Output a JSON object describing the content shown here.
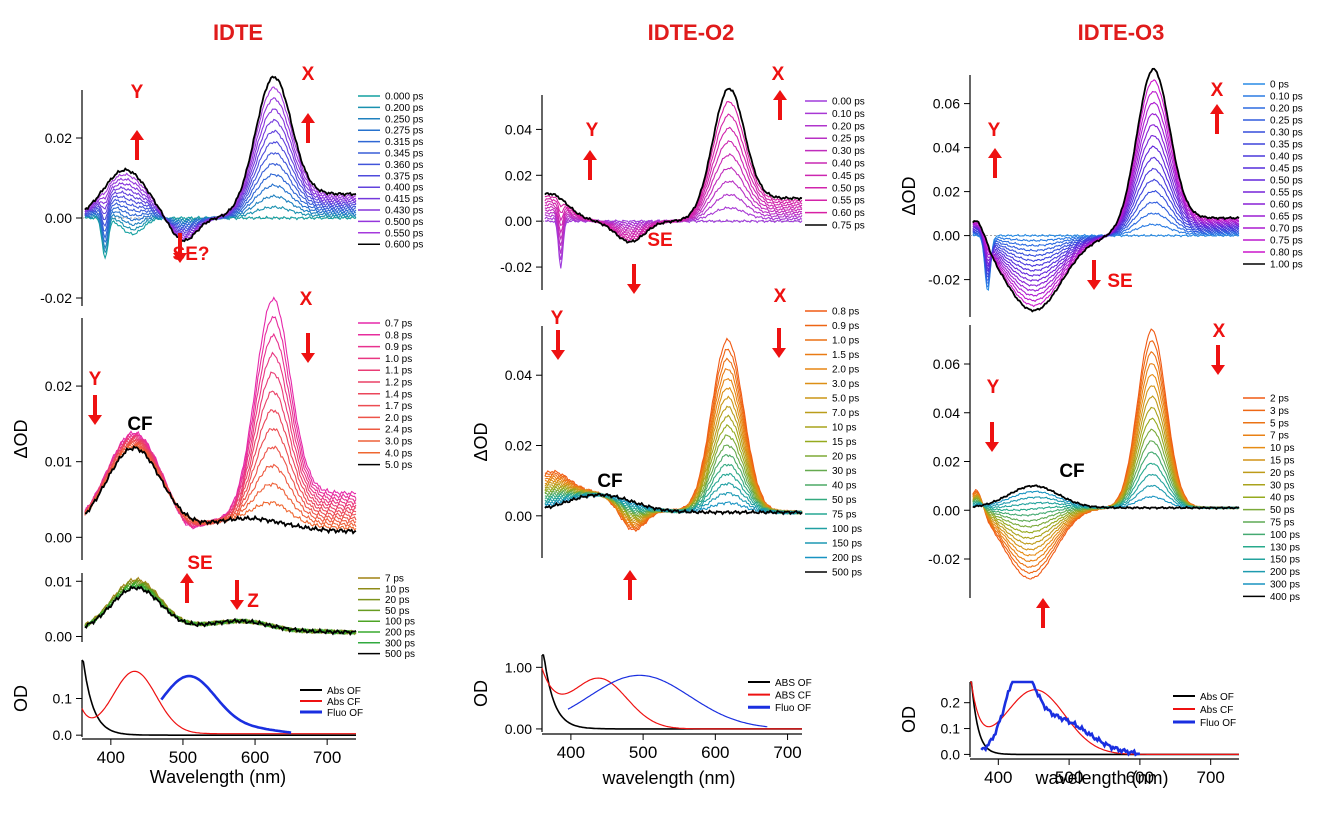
{
  "colors": {
    "title": "#e01b1b",
    "annot": "#ee1111",
    "black": "#000000",
    "red": "#ee1111",
    "blue": "#1a2fe0"
  },
  "columns": [
    {
      "title": "IDTE",
      "xlabel": "Wavelength (nm)",
      "panels": [
        {
          "kind": "evolution",
          "ylabel": "",
          "yticks": [
            "0.02",
            "0.00",
            "-0.02"
          ],
          "ylim": [
            -0.022,
            0.032
          ],
          "legend": [
            "0.000 ps",
            "0.200 ps",
            "0.250 ps",
            "0.275 ps",
            "0.315 ps",
            "0.345 ps",
            "0.360 ps",
            "0.375 ps",
            "0.400 ps",
            "0.415 ps",
            "0.430 ps",
            "0.500 ps",
            "0.550 ps",
            "0.600 ps"
          ],
          "annotations": [
            {
              "text": "Y",
              "dir": "up"
            },
            {
              "text": "X",
              "dir": "up"
            },
            {
              "text": "SE?",
              "dir": "down"
            }
          ]
        },
        {
          "kind": "decay",
          "ylabel": "ΔOD",
          "yticks": [
            "0.02",
            "0.01",
            "0.00"
          ],
          "ylim": [
            -0.003,
            0.029
          ],
          "legend": [
            "0.7 ps",
            "0.8 ps",
            "0.9 ps",
            "1.0 ps",
            "1.1 ps",
            "1.2 ps",
            "1.4 ps",
            "1.7 ps",
            "2.0 ps",
            "2.4 ps",
            "3.0 ps",
            "4.0 ps",
            "5.0 ps"
          ],
          "annotations": [
            {
              "text": "Y",
              "dir": "down"
            },
            {
              "text": "X",
              "dir": "down"
            },
            {
              "text": "CF",
              "dir": "none"
            },
            {
              "text": "SE",
              "dir": "up"
            }
          ]
        },
        {
          "kind": "slow",
          "ylabel": "",
          "yticks": [
            "0.01",
            "0.00"
          ],
          "ylim": [
            -0.001,
            0.0115
          ],
          "legend": [
            "7 ps",
            "10 ps",
            "20 ps",
            "50 ps",
            "100 ps",
            "200 ps",
            "300 ps",
            "500 ps"
          ],
          "annotations": [
            {
              "text": "Z",
              "dir": "down"
            }
          ]
        },
        {
          "kind": "steady",
          "ylabel": "OD",
          "yticks": [
            "0.1",
            "0.0"
          ],
          "ylim": [
            -0.005,
            0.205
          ],
          "legend": [
            "Abs OF",
            "Abs CF",
            "Fluo OF"
          ]
        }
      ],
      "xticks": [
        "400",
        "500",
        "600",
        "700"
      ]
    },
    {
      "title": "IDTE-O2",
      "xlabel": "wavelength (nm)",
      "panels": [
        {
          "kind": "evolution",
          "ylabel": "",
          "yticks": [
            "0.04",
            "0.02",
            "0.00",
            "-0.02"
          ],
          "ylim": [
            -0.03,
            0.055
          ],
          "legend": [
            "0.00 ps",
            "0.10 ps",
            "0.20 ps",
            "0.25 ps",
            "0.30 ps",
            "0.40 ps",
            "0.45 ps",
            "0.50 ps",
            "0.55 ps",
            "0.60 ps",
            "0.75 ps"
          ],
          "annotations": [
            {
              "text": "Y",
              "dir": "up"
            },
            {
              "text": "X",
              "dir": "up"
            },
            {
              "text": "SE",
              "dir": "down"
            }
          ]
        },
        {
          "kind": "decay",
          "ylabel": "ΔOD",
          "yticks": [
            "0.04",
            "0.02",
            "0.00"
          ],
          "ylim": [
            -0.012,
            0.054
          ],
          "legend": [
            "0.8 ps",
            "0.9 ps",
            "1.0 ps",
            "1.5 ps",
            "2.0 ps",
            "3.0 ps",
            "5.0 ps",
            "7.0 ps",
            "10 ps",
            "15 ps",
            "20 ps",
            "30 ps",
            "40 ps",
            "50 ps",
            "75 ps",
            "100 ps",
            "150 ps",
            "200 ps",
            "500 ps"
          ],
          "annotations": [
            {
              "text": "Y",
              "dir": "down"
            },
            {
              "text": "X",
              "dir": "down"
            },
            {
              "text": "CF",
              "dir": "none"
            },
            {
              "text": "",
              "dir": "up"
            }
          ]
        },
        {
          "kind": "steady",
          "ylabel": "OD",
          "yticks": [
            "1.00",
            "0.00"
          ],
          "ylim": [
            -0.05,
            1.2
          ],
          "legend": [
            "ABS OF",
            "ABS CF",
            "Fluo OF"
          ]
        }
      ],
      "xticks": [
        "400",
        "500",
        "600",
        "700"
      ]
    },
    {
      "title": "IDTE-O3",
      "xlabel": "wavelength (nm)",
      "panels": [
        {
          "kind": "evolution",
          "ylabel": "ΔOD",
          "yticks": [
            "0.06",
            "0.04",
            "0.02",
            "0.00",
            "-0.02"
          ],
          "ylim": [
            -0.037,
            0.073
          ],
          "legend": [
            "0 ps",
            "0.10 ps",
            "0.20 ps",
            "0.25 ps",
            "0.30 ps",
            "0.35 ps",
            "0.40 ps",
            "0.45 ps",
            "0.50 ps",
            "0.55 ps",
            "0.60 ps",
            "0.65 ps",
            "0.70 ps",
            "0.75 ps",
            "0.80 ps",
            "1.00 ps"
          ],
          "annotations": [
            {
              "text": "Y",
              "dir": "up"
            },
            {
              "text": "X",
              "dir": "up"
            },
            {
              "text": "SE",
              "dir": "down"
            }
          ]
        },
        {
          "kind": "decay",
          "ylabel": "",
          "yticks": [
            "0.06",
            "0.04",
            "0.02",
            "0.00",
            "-0.02"
          ],
          "ylim": [
            -0.036,
            0.076
          ],
          "legend": [
            "2 ps",
            "3 ps",
            "5 ps",
            "7 ps",
            "10 ps",
            "15 ps",
            "20 ps",
            "30 ps",
            "40 ps",
            "50 ps",
            "75 ps",
            "100 ps",
            "130 ps",
            "150 ps",
            "200 ps",
            "300 ps",
            "400 ps"
          ],
          "annotations": [
            {
              "text": "Y",
              "dir": "down"
            },
            {
              "text": "X",
              "dir": "down"
            },
            {
              "text": "CF",
              "dir": "none"
            },
            {
              "text": "",
              "dir": "up"
            }
          ]
        },
        {
          "kind": "steady",
          "ylabel": "OD",
          "yticks": [
            "0.2",
            "0.1",
            "0.0"
          ],
          "ylim": [
            -0.01,
            0.28
          ],
          "legend": [
            "Abs OF",
            "Abs CF",
            "Fluo OF"
          ]
        }
      ],
      "xticks": [
        "400",
        "500",
        "600",
        "700"
      ]
    }
  ],
  "chart_data": [
    {
      "type": "line",
      "title": "IDTE",
      "xlabel": "Wavelength (nm)",
      "ylabel": "ΔOD",
      "xlim": [
        360,
        740
      ],
      "series": [
        {
          "name": "0.600 ps",
          "x": [
            380,
            420,
            460,
            500,
            540,
            580,
            620,
            660,
            700
          ],
          "y": [
            0.008,
            0.012,
            0.009,
            -0.002,
            0.003,
            0.015,
            0.03,
            0.01,
            0.006
          ]
        },
        {
          "name": "5.0 ps",
          "x": [
            380,
            430,
            470,
            510,
            560,
            600,
            650,
            700
          ],
          "y": [
            0.005,
            0.011,
            0.006,
            0.001,
            0.002,
            0.003,
            0.002,
            0.001
          ]
        },
        {
          "name": "500 ps",
          "x": [
            380,
            430,
            480,
            530,
            580,
            630,
            700
          ],
          "y": [
            0.003,
            0.009,
            0.005,
            0.001,
            0.002,
            0.001,
            0.001
          ]
        },
        {
          "name": "Abs OF",
          "x": [
            365,
            380,
            400,
            420,
            450
          ],
          "y": [
            0.18,
            0.08,
            0.02,
            0.005,
            0.0
          ]
        },
        {
          "name": "Abs CF",
          "x": [
            370,
            400,
            435,
            470,
            520,
            600
          ],
          "y": [
            0.05,
            0.07,
            0.17,
            0.08,
            0.015,
            0.003
          ]
        },
        {
          "name": "Fluo OF",
          "x": [
            470,
            510,
            560,
            600,
            650
          ],
          "y": [
            0.0,
            0.16,
            0.08,
            0.02,
            0.0
          ]
        }
      ]
    },
    {
      "type": "line",
      "title": "IDTE-O2",
      "xlabel": "wavelength (nm)",
      "ylabel": "ΔOD",
      "xlim": [
        360,
        720
      ],
      "series": [
        {
          "name": "0.75 ps",
          "x": [
            370,
            420,
            480,
            540,
            580,
            615,
            660,
            700
          ],
          "y": [
            0.012,
            0.005,
            -0.009,
            0.005,
            0.03,
            0.052,
            0.02,
            0.008
          ]
        },
        {
          "name": "500 ps",
          "x": [
            370,
            420,
            470,
            500,
            550,
            600,
            700
          ],
          "y": [
            0.003,
            0.004,
            0.006,
            0.004,
            0.002,
            0.002,
            0.001
          ]
        },
        {
          "name": "ABS OF",
          "x": [
            365,
            380,
            400,
            450
          ],
          "y": [
            1.2,
            0.3,
            0.08,
            0.02
          ]
        },
        {
          "name": "ABS CF",
          "x": [
            370,
            390,
            440,
            500,
            560,
            620
          ],
          "y": [
            0.8,
            0.6,
            0.8,
            0.35,
            0.08,
            0.02
          ]
        },
        {
          "name": "Fluo OF",
          "x": [
            400,
            440,
            495,
            560,
            620,
            670
          ],
          "y": [
            0.05,
            0.4,
            0.87,
            0.6,
            0.3,
            0.12
          ]
        }
      ]
    },
    {
      "type": "line",
      "title": "IDTE-O3",
      "xlabel": "wavelength (nm)",
      "ylabel": "ΔOD",
      "xlim": [
        360,
        740
      ],
      "series": [
        {
          "name": "1.00 ps",
          "x": [
            370,
            400,
            450,
            500,
            550,
            600,
            620,
            660,
            700
          ],
          "y": [
            0.01,
            -0.012,
            -0.034,
            -0.015,
            0.015,
            0.055,
            0.07,
            0.025,
            0.008
          ]
        },
        {
          "name": "400 ps",
          "x": [
            370,
            400,
            450,
            500,
            550,
            620,
            700
          ],
          "y": [
            0.002,
            0.006,
            0.009,
            0.004,
            0.001,
            0.002,
            0.001
          ]
        },
        {
          "name": "Abs OF",
          "x": [
            370,
            385,
            400,
            450
          ],
          "y": [
            0.28,
            0.05,
            0.01,
            0.0
          ]
        },
        {
          "name": "Abs CF",
          "x": [
            370,
            400,
            450,
            500,
            560
          ],
          "y": [
            0.25,
            0.15,
            0.25,
            0.14,
            0.02
          ]
        },
        {
          "name": "Fluo OF",
          "x": [
            380,
            410,
            430,
            460,
            500,
            560,
            600
          ],
          "y": [
            0.02,
            0.2,
            0.26,
            0.2,
            0.09,
            0.03,
            0.0
          ]
        }
      ]
    }
  ]
}
